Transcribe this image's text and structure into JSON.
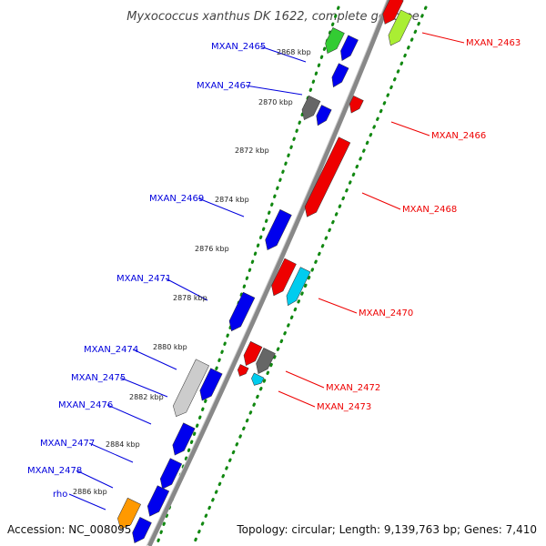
{
  "title": "Myxococcus xanthus DK 1622, complete genome",
  "footer": {
    "accession": "Accession: NC_008095",
    "topology": "Topology: circular; Length: 9,139,763 bp; Genes: 7,410"
  },
  "colors": {
    "forward_label": "#0000dd",
    "reverse_label": "#ee0000",
    "backbone": "#888888",
    "tick_dots": "#118811",
    "gene_blue": "#0000ee",
    "gene_red": "#ee0000",
    "gene_green": "#33cc33",
    "gene_lightgreen": "#aaee33",
    "gene_gray": "#666666",
    "gene_lightgray": "#cccccc",
    "gene_cyan": "#00ccee",
    "gene_orange": "#ff9900"
  },
  "kbp_labels": [
    "2868 kbp",
    "2870 kbp",
    "2872 kbp",
    "2874 kbp",
    "2876 kbp",
    "2878 kbp",
    "2880 kbp",
    "2882 kbp",
    "2884 kbp",
    "2886 kbp"
  ],
  "forward_labels": [
    "MXAN_2465",
    "MXAN_2467",
    "MXAN_2469",
    "MXAN_2471",
    "MXAN_2474",
    "MXAN_2475",
    "MXAN_2476",
    "MXAN_2477",
    "MXAN_2478",
    "rho"
  ],
  "reverse_labels": [
    "MXAN_2463",
    "MXAN_2466",
    "MXAN_2468",
    "MXAN_2470",
    "MXAN_2472",
    "MXAN_2473"
  ]
}
